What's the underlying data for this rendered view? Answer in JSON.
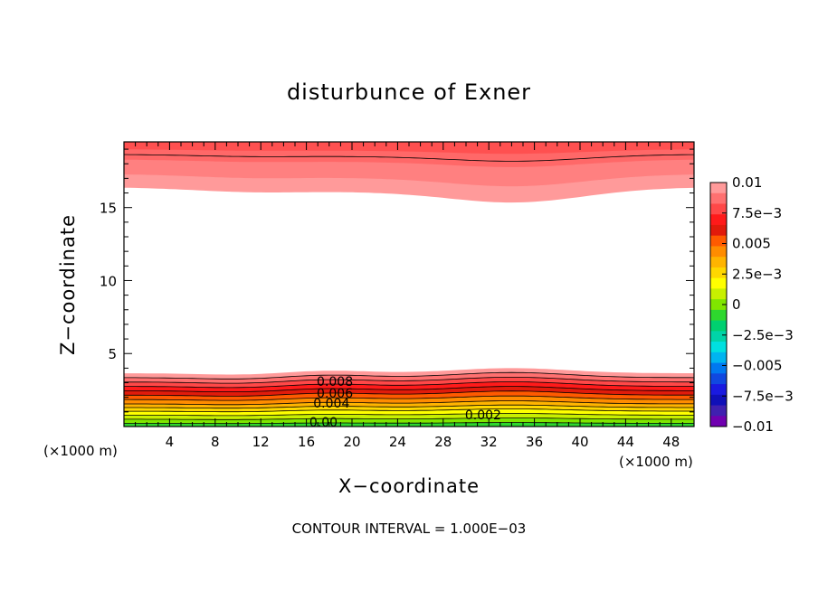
{
  "chart_data": {
    "type": "heatmap",
    "title": "disturbunce of Exner",
    "xlabel": "X−coordinate",
    "ylabel": "Z−coordinate",
    "x_unit_left": "(×1000 m)",
    "x_unit_right": "(×1000 m)",
    "contour_interval": "CONTOUR INTERVAL = 1.000E−03",
    "xlim": [
      0,
      50
    ],
    "ylim": [
      0,
      19.5
    ],
    "x_ticks": [
      4,
      8,
      12,
      16,
      20,
      24,
      28,
      32,
      36,
      40,
      44,
      48
    ],
    "y_ticks": [
      5,
      10,
      15
    ],
    "colorbar": {
      "range": [
        -0.01,
        0.01
      ],
      "labels": [
        "0.01",
        "7.5e−3",
        "0.005",
        "2.5e−3",
        "0",
        "−2.5e−3",
        "−0.005",
        "−7.5e−3",
        "−0.01"
      ],
      "colors": [
        "#ff9a9a",
        "#ff7070",
        "#ff4848",
        "#ff1a1a",
        "#e11b0b",
        "#ff5a00",
        "#ff8c00",
        "#ffb400",
        "#ffd700",
        "#ffff00",
        "#c8f000",
        "#80e600",
        "#2ed82e",
        "#00d070",
        "#00d4a8",
        "#00e0e0",
        "#00b4f0",
        "#0078f0",
        "#1048e0",
        "#1a1ae0",
        "#1010b8",
        "#4020b0",
        "#7000b0"
      ]
    },
    "contour_labels": [
      {
        "text": "0.008",
        "x": 18.5,
        "z": 3.1
      },
      {
        "text": "0.006",
        "x": 18.5,
        "z": 2.3
      },
      {
        "text": "0.004",
        "x": 18.2,
        "z": 1.6
      },
      {
        "text": "0.002",
        "x": 31.5,
        "z": 0.8
      },
      {
        "text": "0.00",
        "x": 17.5,
        "z": 0.3
      }
    ]
  }
}
